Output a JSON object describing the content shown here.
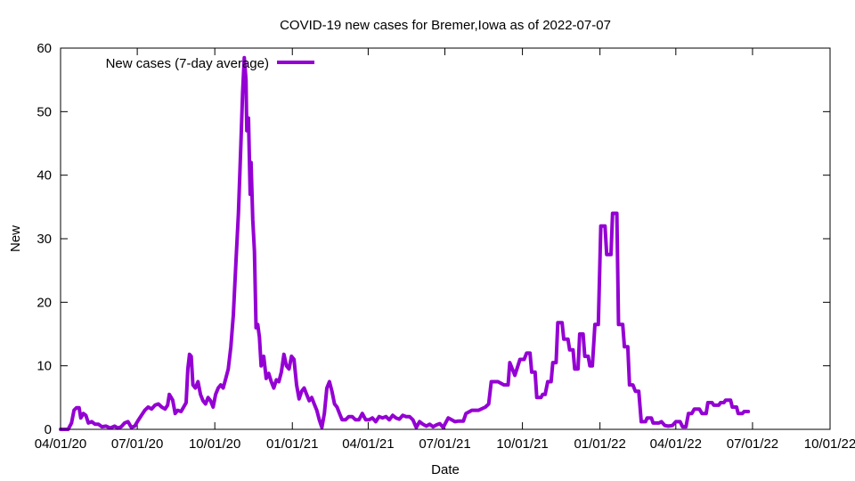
{
  "chart_data": {
    "type": "line",
    "title": "COVID-19 new cases for Bremer,Iowa as of 2022-07-07",
    "xlabel": "Date",
    "ylabel": "New",
    "xlim": [
      "2020-04-01",
      "2022-10-01"
    ],
    "ylim": [
      0,
      60
    ],
    "x_ticks": [
      "04/01/20",
      "07/01/20",
      "10/01/20",
      "01/01/21",
      "04/01/21",
      "07/01/21",
      "10/01/21",
      "01/01/22",
      "04/01/22",
      "07/01/22",
      "10/01/22"
    ],
    "x_tick_dates": [
      "2020-04-01",
      "2020-07-01",
      "2020-10-01",
      "2021-01-01",
      "2021-04-01",
      "2021-07-01",
      "2021-10-01",
      "2022-01-01",
      "2022-04-01",
      "2022-07-01",
      "2022-10-01"
    ],
    "y_ticks": [
      0,
      10,
      20,
      30,
      40,
      50,
      60
    ],
    "legend_position": "top-left",
    "grid": false,
    "series": [
      {
        "name": "New cases (7-day average)",
        "color": "#9400d3",
        "points": [
          [
            "2020-04-01",
            0
          ],
          [
            "2020-04-10",
            0
          ],
          [
            "2020-04-14",
            1
          ],
          [
            "2020-04-17",
            3
          ],
          [
            "2020-04-20",
            3.4
          ],
          [
            "2020-04-23",
            3.4
          ],
          [
            "2020-04-25",
            1.8
          ],
          [
            "2020-04-28",
            2.5
          ],
          [
            "2020-05-01",
            2.2
          ],
          [
            "2020-05-04",
            1
          ],
          [
            "2020-05-08",
            1.2
          ],
          [
            "2020-05-12",
            0.8
          ],
          [
            "2020-05-16",
            0.8
          ],
          [
            "2020-05-20",
            0.4
          ],
          [
            "2020-05-25",
            0.5
          ],
          [
            "2020-05-30",
            0.2
          ],
          [
            "2020-06-04",
            0.5
          ],
          [
            "2020-06-08",
            0.2
          ],
          [
            "2020-06-12",
            0.4
          ],
          [
            "2020-06-16",
            1
          ],
          [
            "2020-06-20",
            1.2
          ],
          [
            "2020-06-24",
            0.3
          ],
          [
            "2020-06-28",
            0.5
          ],
          [
            "2020-07-02",
            1.4
          ],
          [
            "2020-07-06",
            2.2
          ],
          [
            "2020-07-10",
            3
          ],
          [
            "2020-07-14",
            3.5
          ],
          [
            "2020-07-18",
            3.2
          ],
          [
            "2020-07-22",
            3.8
          ],
          [
            "2020-07-26",
            4
          ],
          [
            "2020-07-30",
            3.5
          ],
          [
            "2020-08-03",
            3.2
          ],
          [
            "2020-08-06",
            3.8
          ],
          [
            "2020-08-08",
            5.5
          ],
          [
            "2020-08-12",
            4.6
          ],
          [
            "2020-08-15",
            2.5
          ],
          [
            "2020-08-18",
            3
          ],
          [
            "2020-08-22",
            2.8
          ],
          [
            "2020-08-25",
            3.5
          ],
          [
            "2020-08-28",
            4.2
          ],
          [
            "2020-08-30",
            9.5
          ],
          [
            "2020-09-01",
            11.8
          ],
          [
            "2020-09-03",
            11.5
          ],
          [
            "2020-09-05",
            7
          ],
          [
            "2020-09-08",
            6.5
          ],
          [
            "2020-09-11",
            7.5
          ],
          [
            "2020-09-14",
            5.5
          ],
          [
            "2020-09-17",
            4.5
          ],
          [
            "2020-09-20",
            4
          ],
          [
            "2020-09-23",
            5
          ],
          [
            "2020-09-26",
            4.5
          ],
          [
            "2020-09-29",
            3.5
          ],
          [
            "2020-10-02",
            5.5
          ],
          [
            "2020-10-05",
            6.5
          ],
          [
            "2020-10-08",
            7
          ],
          [
            "2020-10-11",
            6.5
          ],
          [
            "2020-10-14",
            8
          ],
          [
            "2020-10-17",
            9.5
          ],
          [
            "2020-10-20",
            13
          ],
          [
            "2020-10-23",
            18
          ],
          [
            "2020-10-26",
            26
          ],
          [
            "2020-10-29",
            34
          ],
          [
            "2020-11-01",
            45
          ],
          [
            "2020-11-03",
            53
          ],
          [
            "2020-11-05",
            58.5
          ],
          [
            "2020-11-07",
            55
          ],
          [
            "2020-11-08",
            47
          ],
          [
            "2020-11-10",
            49
          ],
          [
            "2020-11-12",
            37
          ],
          [
            "2020-11-13",
            42
          ],
          [
            "2020-11-15",
            33
          ],
          [
            "2020-11-17",
            28
          ],
          [
            "2020-11-19",
            16
          ],
          [
            "2020-11-21",
            16.5
          ],
          [
            "2020-11-23",
            14.5
          ],
          [
            "2020-11-25",
            10
          ],
          [
            "2020-11-28",
            11.5
          ],
          [
            "2020-12-01",
            8
          ],
          [
            "2020-12-04",
            8.8
          ],
          [
            "2020-12-07",
            7.5
          ],
          [
            "2020-12-10",
            6.5
          ],
          [
            "2020-12-13",
            7.8
          ],
          [
            "2020-12-16",
            7.5
          ],
          [
            "2020-12-19",
            9
          ],
          [
            "2020-12-22",
            11.8
          ],
          [
            "2020-12-25",
            10
          ],
          [
            "2020-12-28",
            9.5
          ],
          [
            "2020-12-31",
            11.5
          ],
          [
            "2021-01-03",
            11
          ],
          [
            "2021-01-06",
            7
          ],
          [
            "2021-01-09",
            4.8
          ],
          [
            "2021-01-12",
            6
          ],
          [
            "2021-01-15",
            6.5
          ],
          [
            "2021-01-18",
            5.5
          ],
          [
            "2021-01-21",
            4.5
          ],
          [
            "2021-01-24",
            5
          ],
          [
            "2021-01-27",
            4
          ],
          [
            "2021-01-30",
            3
          ],
          [
            "2021-02-02",
            1.5
          ],
          [
            "2021-02-05",
            0.3
          ],
          [
            "2021-02-08",
            2.5
          ],
          [
            "2021-02-11",
            6.5
          ],
          [
            "2021-02-14",
            7.5
          ],
          [
            "2021-02-17",
            6
          ],
          [
            "2021-02-20",
            4
          ],
          [
            "2021-02-23",
            3.5
          ],
          [
            "2021-02-26",
            2.5
          ],
          [
            "2021-03-01",
            1.5
          ],
          [
            "2021-03-05",
            1.5
          ],
          [
            "2021-03-09",
            2
          ],
          [
            "2021-03-13",
            2
          ],
          [
            "2021-03-17",
            1.5
          ],
          [
            "2021-03-21",
            1.5
          ],
          [
            "2021-03-25",
            2.5
          ],
          [
            "2021-03-29",
            1.5
          ],
          [
            "2021-04-02",
            1.5
          ],
          [
            "2021-04-06",
            1.8
          ],
          [
            "2021-04-10",
            1.2
          ],
          [
            "2021-04-14",
            2
          ],
          [
            "2021-04-18",
            1.8
          ],
          [
            "2021-04-22",
            2
          ],
          [
            "2021-04-26",
            1.5
          ],
          [
            "2021-04-30",
            2.2
          ],
          [
            "2021-05-04",
            1.8
          ],
          [
            "2021-05-08",
            1.6
          ],
          [
            "2021-05-12",
            2.2
          ],
          [
            "2021-05-16",
            2
          ],
          [
            "2021-05-20",
            2
          ],
          [
            "2021-05-24",
            1.5
          ],
          [
            "2021-05-28",
            0.3
          ],
          [
            "2021-06-01",
            1.2
          ],
          [
            "2021-06-05",
            0.8
          ],
          [
            "2021-06-09",
            0.5
          ],
          [
            "2021-06-13",
            0.8
          ],
          [
            "2021-06-17",
            0.4
          ],
          [
            "2021-06-21",
            0.7
          ],
          [
            "2021-06-25",
            0.9
          ],
          [
            "2021-06-29",
            0.3
          ],
          [
            "2021-07-01",
            0.8
          ],
          [
            "2021-07-05",
            1.8
          ],
          [
            "2021-07-09",
            1.5
          ],
          [
            "2021-07-13",
            1.2
          ],
          [
            "2021-07-17",
            1.3
          ],
          [
            "2021-07-23",
            1.3
          ],
          [
            "2021-07-26",
            2.5
          ],
          [
            "2021-08-02",
            3
          ],
          [
            "2021-08-10",
            3
          ],
          [
            "2021-08-18",
            3.5
          ],
          [
            "2021-08-22",
            4
          ],
          [
            "2021-08-25",
            7.5
          ],
          [
            "2021-09-02",
            7.5
          ],
          [
            "2021-09-09",
            7
          ],
          [
            "2021-09-14",
            7
          ],
          [
            "2021-09-16",
            10.5
          ],
          [
            "2021-09-22",
            8.5
          ],
          [
            "2021-09-28",
            11
          ],
          [
            "2021-10-03",
            11
          ],
          [
            "2021-10-06",
            12
          ],
          [
            "2021-10-10",
            12
          ],
          [
            "2021-10-12",
            9
          ],
          [
            "2021-10-16",
            9
          ],
          [
            "2021-10-18",
            5
          ],
          [
            "2021-10-23",
            5
          ],
          [
            "2021-10-25",
            5.5
          ],
          [
            "2021-10-28",
            5.5
          ],
          [
            "2021-10-31",
            7.5
          ],
          [
            "2021-11-04",
            7.5
          ],
          [
            "2021-11-06",
            10.5
          ],
          [
            "2021-11-10",
            10.5
          ],
          [
            "2021-11-12",
            16.8
          ],
          [
            "2021-11-17",
            16.8
          ],
          [
            "2021-11-19",
            14.2
          ],
          [
            "2021-11-24",
            14.2
          ],
          [
            "2021-11-26",
            12.5
          ],
          [
            "2021-11-30",
            12.5
          ],
          [
            "2021-12-02",
            9.5
          ],
          [
            "2021-12-06",
            9.5
          ],
          [
            "2021-12-08",
            15
          ],
          [
            "2021-12-12",
            15
          ],
          [
            "2021-12-14",
            11.5
          ],
          [
            "2021-12-18",
            11.5
          ],
          [
            "2021-12-20",
            10
          ],
          [
            "2021-12-23",
            10
          ],
          [
            "2021-12-26",
            16.5
          ],
          [
            "2021-12-30",
            16.5
          ],
          [
            "2022-01-02",
            32
          ],
          [
            "2022-01-07",
            32
          ],
          [
            "2022-01-09",
            27.5
          ],
          [
            "2022-01-14",
            27.5
          ],
          [
            "2022-01-16",
            34
          ],
          [
            "2022-01-21",
            34
          ],
          [
            "2022-01-23",
            16.5
          ],
          [
            "2022-01-28",
            16.5
          ],
          [
            "2022-01-30",
            13
          ],
          [
            "2022-02-03",
            13
          ],
          [
            "2022-02-05",
            7
          ],
          [
            "2022-02-09",
            7
          ],
          [
            "2022-02-12",
            6
          ],
          [
            "2022-02-16",
            6
          ],
          [
            "2022-02-19",
            1.2
          ],
          [
            "2022-02-24",
            1.2
          ],
          [
            "2022-02-26",
            1.8
          ],
          [
            "2022-03-03",
            1.8
          ],
          [
            "2022-03-05",
            1
          ],
          [
            "2022-03-12",
            1
          ],
          [
            "2022-03-15",
            1.2
          ],
          [
            "2022-03-19",
            0.6
          ],
          [
            "2022-03-23",
            0.5
          ],
          [
            "2022-03-28",
            0.6
          ],
          [
            "2022-04-01",
            1.2
          ],
          [
            "2022-04-06",
            1.2
          ],
          [
            "2022-04-09",
            0.4
          ],
          [
            "2022-04-13",
            0.4
          ],
          [
            "2022-04-16",
            2.5
          ],
          [
            "2022-04-20",
            2.5
          ],
          [
            "2022-04-23",
            3.2
          ],
          [
            "2022-04-29",
            3.2
          ],
          [
            "2022-05-02",
            2.5
          ],
          [
            "2022-05-07",
            2.5
          ],
          [
            "2022-05-09",
            4.2
          ],
          [
            "2022-05-14",
            4.2
          ],
          [
            "2022-05-16",
            3.8
          ],
          [
            "2022-05-22",
            3.8
          ],
          [
            "2022-05-24",
            4.2
          ],
          [
            "2022-05-28",
            4.2
          ],
          [
            "2022-05-30",
            4.6
          ],
          [
            "2022-06-05",
            4.6
          ],
          [
            "2022-06-07",
            3.5
          ],
          [
            "2022-06-12",
            3.5
          ],
          [
            "2022-06-14",
            2.5
          ],
          [
            "2022-06-19",
            2.5
          ],
          [
            "2022-06-21",
            2.8
          ],
          [
            "2022-06-26",
            2.8
          ]
        ]
      }
    ]
  }
}
